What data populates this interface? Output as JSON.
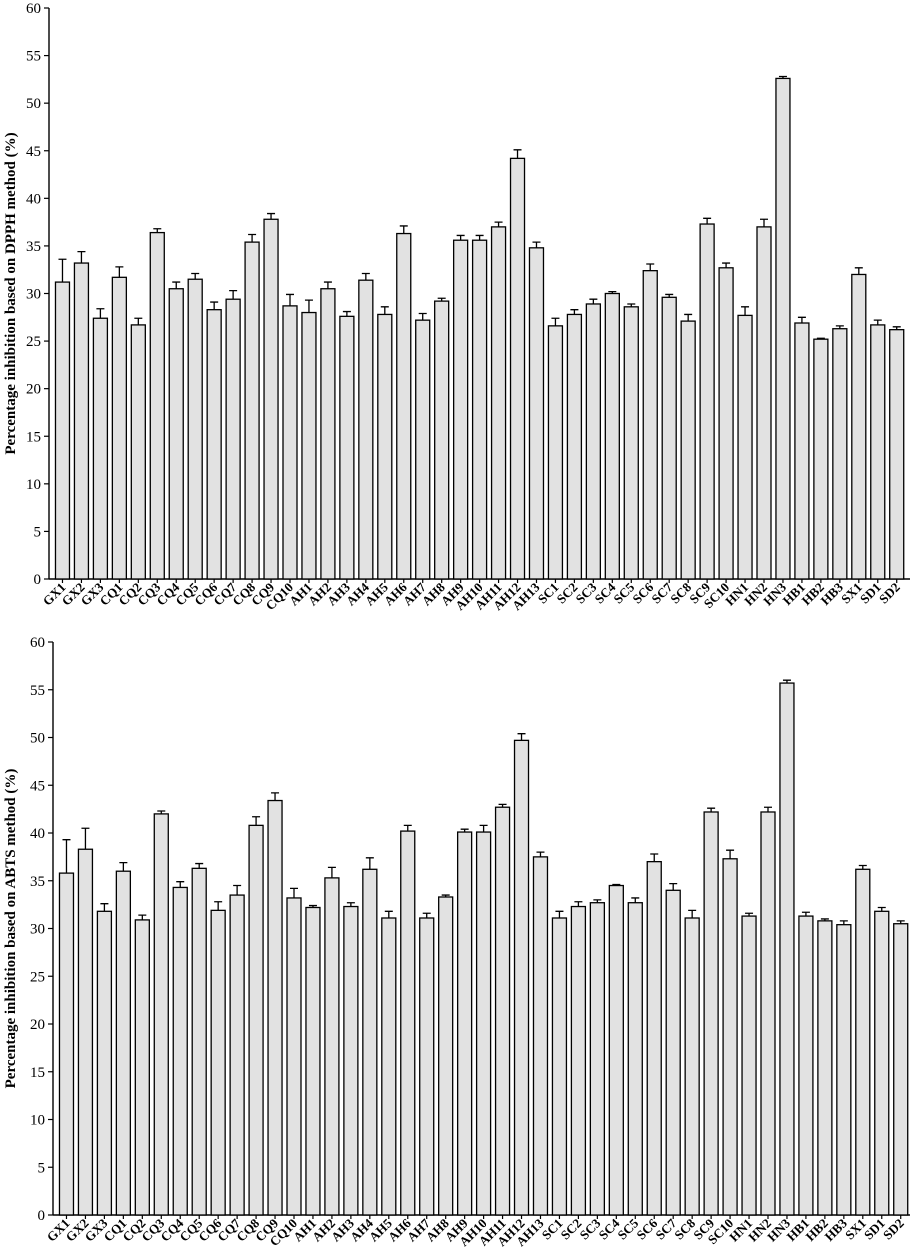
{
  "chart_data": [
    {
      "type": "bar",
      "title": "",
      "xlabel": "",
      "ylabel": "Percentage inhibition based on DPPH method (%)",
      "ylim": [
        0,
        60
      ],
      "yticks": [
        0,
        5,
        10,
        15,
        20,
        25,
        30,
        35,
        40,
        45,
        50,
        55,
        60
      ],
      "grid": false,
      "bar_color": "#e2e2e2",
      "categories": [
        "GX1",
        "GX2",
        "GX3",
        "CQ1",
        "CQ2",
        "CQ3",
        "CQ4",
        "CQ5",
        "CQ6",
        "CQ7",
        "CQ8",
        "CQ9",
        "CQ10",
        "AH1",
        "AH2",
        "AH3",
        "AH4",
        "AH5",
        "AH6",
        "AH7",
        "AH8",
        "AH9",
        "AH10",
        "AH11",
        "AH12",
        "AH13",
        "SC1",
        "SC2",
        "SC3",
        "SC4",
        "SC5",
        "SC6",
        "SC7",
        "SC8",
        "SC9",
        "SC10",
        "HN1",
        "HN2",
        "HN3",
        "HB1",
        "HB2",
        "HB3",
        "SX1",
        "SD1",
        "SD2"
      ],
      "values": [
        31.2,
        33.2,
        27.4,
        31.7,
        26.7,
        36.4,
        30.5,
        31.5,
        28.3,
        29.4,
        35.4,
        37.8,
        28.7,
        28.0,
        30.5,
        27.6,
        31.4,
        27.8,
        36.3,
        27.2,
        29.2,
        35.6,
        35.6,
        37.0,
        44.2,
        34.8,
        26.6,
        27.8,
        28.9,
        30.0,
        28.6,
        32.4,
        29.6,
        27.1,
        37.3,
        32.7,
        27.7,
        37.0,
        52.6,
        26.9,
        25.2,
        26.3,
        32.0,
        26.7,
        26.2
      ],
      "errors": [
        2.4,
        1.2,
        1.0,
        1.1,
        0.7,
        0.4,
        0.7,
        0.6,
        0.8,
        0.9,
        0.8,
        0.6,
        1.2,
        1.3,
        0.7,
        0.5,
        0.7,
        0.8,
        0.8,
        0.7,
        0.3,
        0.5,
        0.5,
        0.5,
        0.9,
        0.6,
        0.8,
        0.5,
        0.5,
        0.2,
        0.3,
        0.7,
        0.3,
        0.7,
        0.6,
        0.5,
        0.9,
        0.8,
        0.2,
        0.6,
        0.1,
        0.3,
        0.7,
        0.5,
        0.3
      ]
    },
    {
      "type": "bar",
      "title": "",
      "xlabel": "",
      "ylabel": "Percentage inhibition based on ABTS method (%)",
      "ylim": [
        0,
        60
      ],
      "yticks": [
        0,
        5,
        10,
        15,
        20,
        25,
        30,
        35,
        40,
        45,
        50,
        55,
        60
      ],
      "grid": false,
      "bar_color": "#e2e2e2",
      "categories": [
        "GX1",
        "GX2",
        "GX3",
        "CQ1",
        "CQ2",
        "CQ3",
        "CQ4",
        "CQ5",
        "CQ6",
        "CQ7",
        "CQ8",
        "CQ9",
        "CQ10",
        "AH1",
        "AH2",
        "AH3",
        "AH4",
        "AH5",
        "AH6",
        "AH7",
        "AH8",
        "AH9",
        "AH10",
        "AH11",
        "AH12",
        "AH13",
        "SC1",
        "SC2",
        "SC3",
        "SC4",
        "SC5",
        "SC6",
        "SC7",
        "SC8",
        "SC9",
        "SC10",
        "HN1",
        "HN2",
        "HN3",
        "HB1",
        "HB2",
        "HB3",
        "SX1",
        "SD1",
        "SD2"
      ],
      "values": [
        35.8,
        38.3,
        31.8,
        36.0,
        30.9,
        42.0,
        34.3,
        36.3,
        31.9,
        33.5,
        40.8,
        43.4,
        33.2,
        32.2,
        35.3,
        32.3,
        36.2,
        31.1,
        40.2,
        31.1,
        33.3,
        40.1,
        40.1,
        42.7,
        49.7,
        37.5,
        31.1,
        32.3,
        32.7,
        34.5,
        32.7,
        37.0,
        34.0,
        31.1,
        42.2,
        37.3,
        31.3,
        42.2,
        55.7,
        31.3,
        30.8,
        30.4,
        36.2,
        31.8,
        30.5
      ],
      "errors": [
        3.5,
        2.2,
        0.8,
        0.9,
        0.5,
        0.3,
        0.6,
        0.5,
        0.9,
        1.0,
        0.9,
        0.8,
        1.0,
        0.2,
        1.1,
        0.4,
        1.2,
        0.7,
        0.6,
        0.5,
        0.2,
        0.3,
        0.7,
        0.3,
        0.7,
        0.5,
        0.7,
        0.5,
        0.3,
        0.1,
        0.5,
        0.8,
        0.7,
        0.8,
        0.4,
        0.9,
        0.3,
        0.5,
        0.3,
        0.4,
        0.2,
        0.4,
        0.4,
        0.4,
        0.3
      ]
    }
  ]
}
